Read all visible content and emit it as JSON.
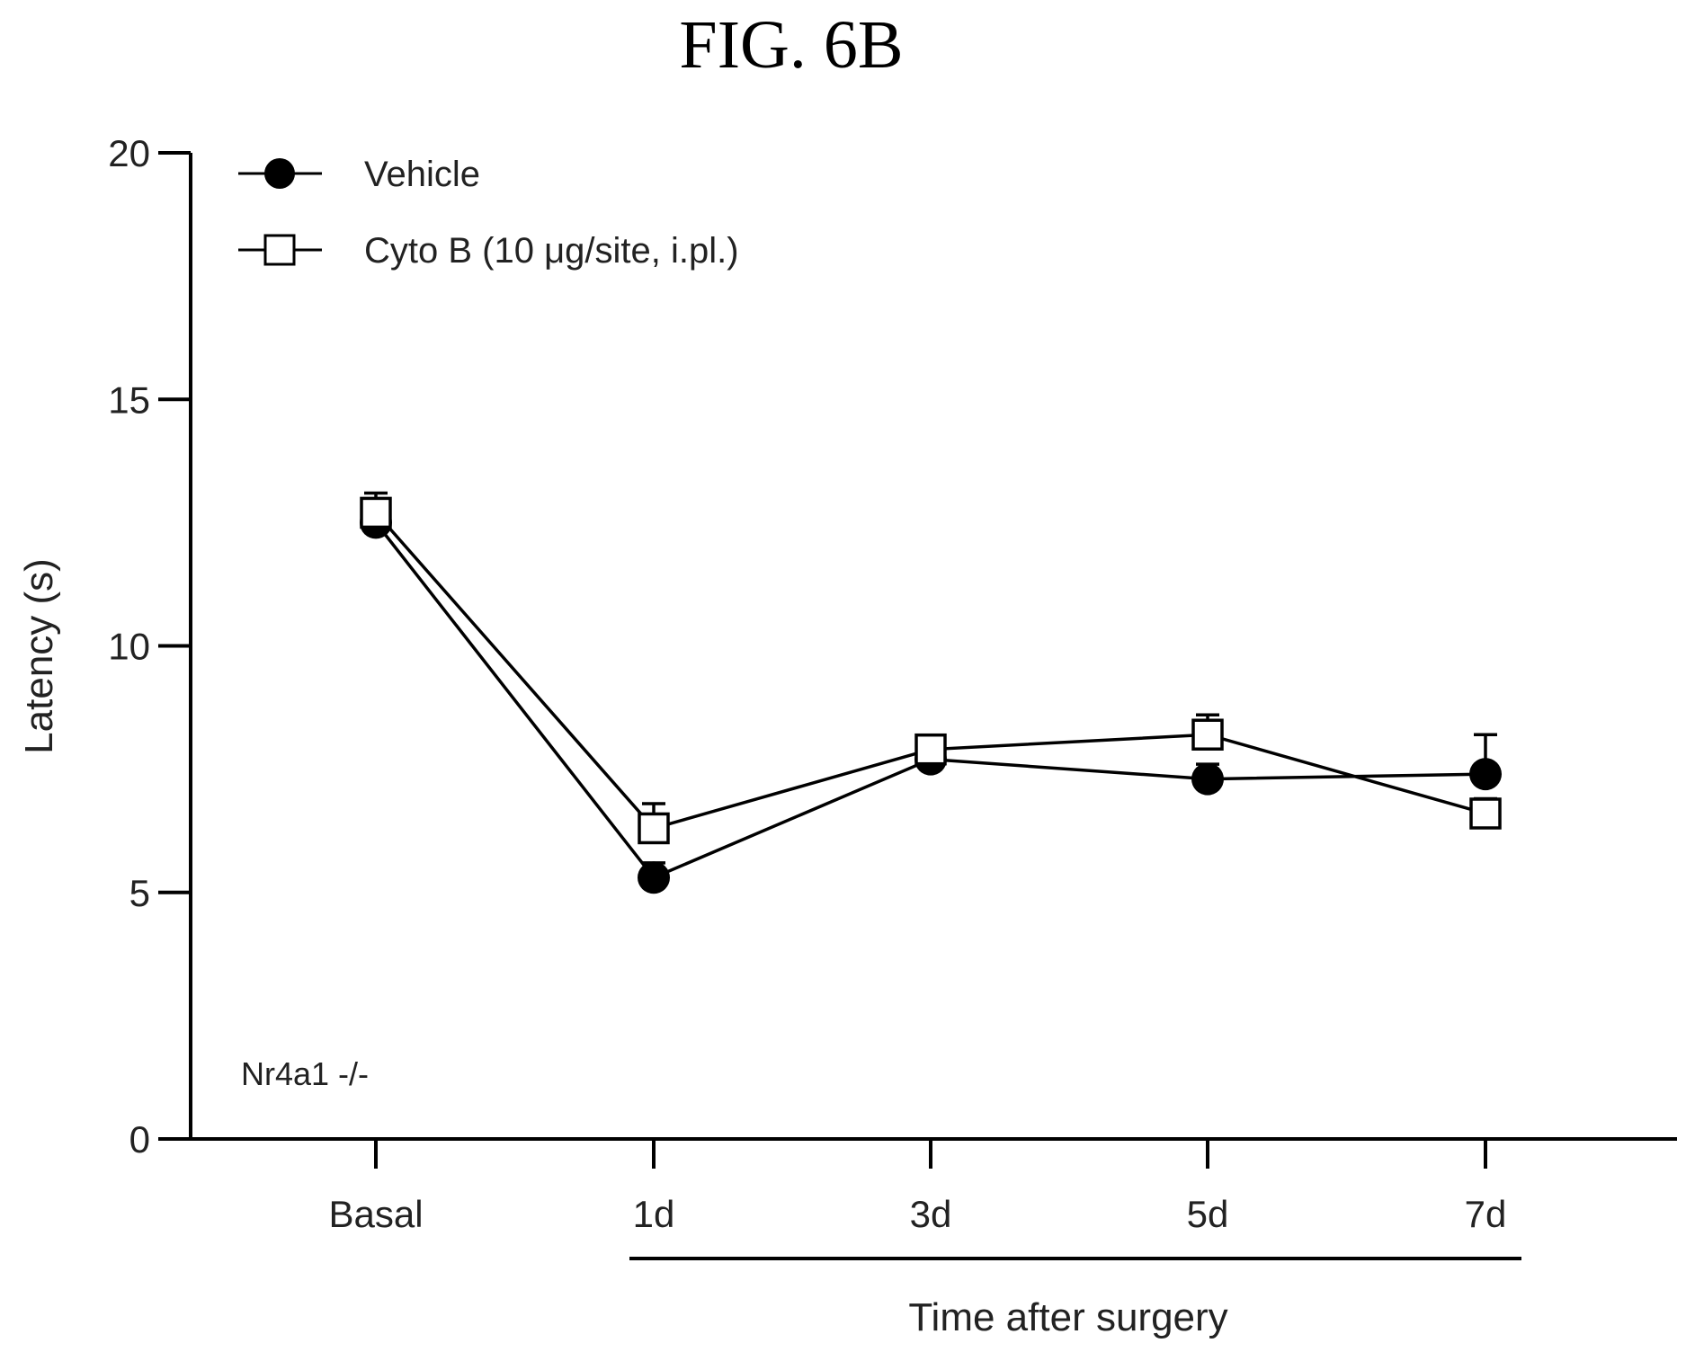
{
  "figure_title": "FIG. 6B",
  "chart_data": {
    "type": "line",
    "ylabel": "Latency (s)",
    "xlabel": "Time after surgery",
    "ylim": [
      0,
      20
    ],
    "yticks": [
      0,
      5,
      10,
      15,
      20
    ],
    "categories": [
      "Basal",
      "1d",
      "3d",
      "5d",
      "7d"
    ],
    "annotation": "Nr4a1 -/-",
    "legend_position": "top-left",
    "grid": false,
    "series": [
      {
        "name": "Vehicle",
        "marker": "filled-circle",
        "color": "#000000",
        "values": [
          12.5,
          5.3,
          7.7,
          7.3,
          7.4
        ],
        "errors": [
          0.3,
          0.3,
          0.2,
          0.3,
          0.8
        ]
      },
      {
        "name": "Cyto B (10  μg/site, i.pl.)",
        "marker": "open-square",
        "color": "#000000",
        "values": [
          12.7,
          6.3,
          7.9,
          8.2,
          6.6
        ],
        "errors": [
          0.4,
          0.5,
          0.2,
          0.4,
          0.3
        ]
      }
    ]
  }
}
